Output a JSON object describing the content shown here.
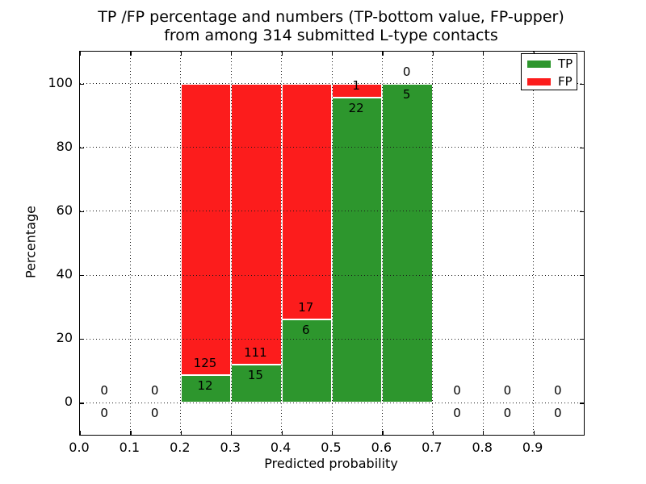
{
  "chart_data": {
    "type": "bar",
    "stacked": true,
    "title_line1": "TP /FP percentage and numbers (TP-bottom value, FP-upper)",
    "title_line2": "from among 314 submitted L-type contacts",
    "xlabel": "Predicted probability",
    "ylabel": "Percentage",
    "total_submitted": 314,
    "xlim": [
      0.0,
      1.0
    ],
    "ylim": [
      -10,
      110
    ],
    "bin_width": 0.1,
    "grid": true,
    "x_ticks": [
      {
        "value": 0.0,
        "label": "0.0"
      },
      {
        "value": 0.1,
        "label": "0.1"
      },
      {
        "value": 0.2,
        "label": "0.2"
      },
      {
        "value": 0.3,
        "label": "0.3"
      },
      {
        "value": 0.4,
        "label": "0.4"
      },
      {
        "value": 0.5,
        "label": "0.5"
      },
      {
        "value": 0.6,
        "label": "0.6"
      },
      {
        "value": 0.7,
        "label": "0.7"
      },
      {
        "value": 0.8,
        "label": "0.8"
      },
      {
        "value": 0.9,
        "label": "0.9"
      }
    ],
    "y_ticks": [
      {
        "value": 0,
        "label": "0"
      },
      {
        "value": 20,
        "label": "20"
      },
      {
        "value": 40,
        "label": "40"
      },
      {
        "value": 60,
        "label": "60"
      },
      {
        "value": 80,
        "label": "80"
      },
      {
        "value": 100,
        "label": "100"
      }
    ],
    "bins": [
      {
        "x_start": 0.0,
        "tp_count": 0,
        "fp_count": 0,
        "tp_pct": 0,
        "fp_pct": 0
      },
      {
        "x_start": 0.1,
        "tp_count": 0,
        "fp_count": 0,
        "tp_pct": 0,
        "fp_pct": 0
      },
      {
        "x_start": 0.2,
        "tp_count": 12,
        "fp_count": 125,
        "tp_pct": 8.76,
        "fp_pct": 91.24
      },
      {
        "x_start": 0.3,
        "tp_count": 15,
        "fp_count": 111,
        "tp_pct": 11.9,
        "fp_pct": 88.1
      },
      {
        "x_start": 0.4,
        "tp_count": 6,
        "fp_count": 17,
        "tp_pct": 26.09,
        "fp_pct": 73.91
      },
      {
        "x_start": 0.5,
        "tp_count": 22,
        "fp_count": 1,
        "tp_pct": 95.65,
        "fp_pct": 4.35
      },
      {
        "x_start": 0.6,
        "tp_count": 5,
        "fp_count": 0,
        "tp_pct": 100,
        "fp_pct": 0
      },
      {
        "x_start": 0.7,
        "tp_count": 0,
        "fp_count": 0,
        "tp_pct": 0,
        "fp_pct": 0
      },
      {
        "x_start": 0.8,
        "tp_count": 0,
        "fp_count": 0,
        "tp_pct": 0,
        "fp_pct": 0
      },
      {
        "x_start": 0.9,
        "tp_count": 0,
        "fp_count": 0,
        "tp_pct": 0,
        "fp_pct": 0
      }
    ],
    "legend": [
      {
        "label": "TP",
        "color": "#2d962d"
      },
      {
        "label": "FP",
        "color": "#fc1c1c"
      }
    ],
    "colors": {
      "tp": "#2d962d",
      "fp": "#fc1c1c",
      "grid": "#1a1a1a",
      "bar_edge": "#ffffff"
    },
    "legend_position": "upper right"
  }
}
